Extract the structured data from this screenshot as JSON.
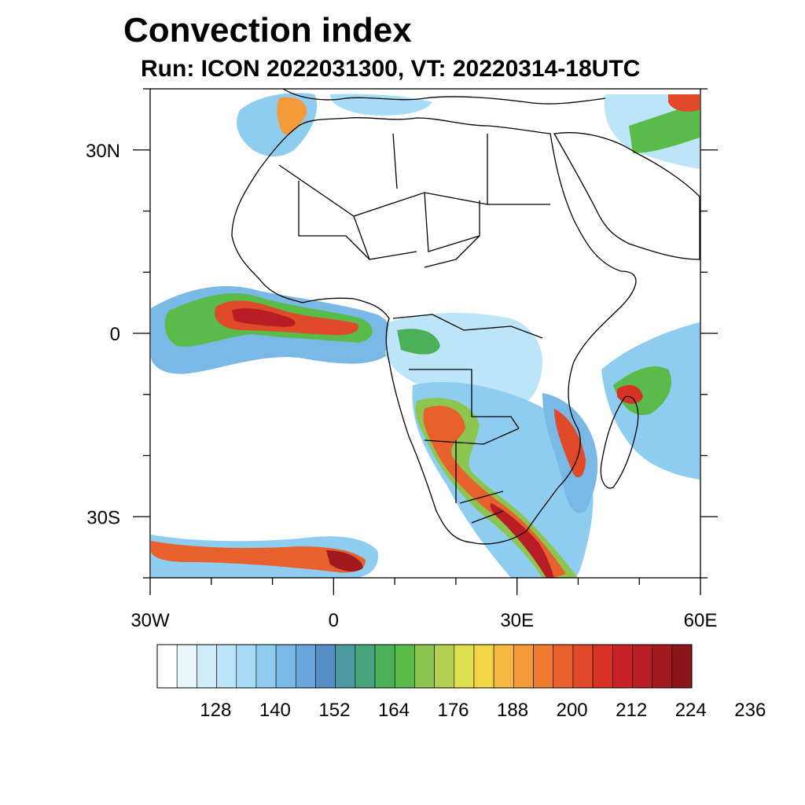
{
  "title": "Convection index",
  "subtitle": "Run: ICON 2022031300,  VT: 20220314-18UTC",
  "map": {
    "region": "Africa",
    "lon_range": [
      -30,
      60
    ],
    "lat_range": [
      -40,
      40
    ],
    "x_ticks": [
      {
        "lon": -30,
        "label": "30W"
      },
      {
        "lon": 0,
        "label": "0"
      },
      {
        "lon": 30,
        "label": "30E"
      },
      {
        "lon": 60,
        "label": "60E"
      }
    ],
    "y_ticks": [
      {
        "lat": 30,
        "label": "30N"
      },
      {
        "lat": 0,
        "label": "0"
      },
      {
        "lat": -30,
        "label": "30S"
      }
    ]
  },
  "colorbar": {
    "colors": [
      "#ffffff",
      "#e8f6fc",
      "#d1edfa",
      "#bde5f8",
      "#a6dcf6",
      "#8fcdf0",
      "#7ab8e6",
      "#6aa5dc",
      "#5590c8",
      "#4a9aa0",
      "#46a47c",
      "#4bb058",
      "#58bb4a",
      "#8cc650",
      "#b4d050",
      "#dfe050",
      "#f2d648",
      "#f6b840",
      "#f49a3a",
      "#ef7a32",
      "#e8602c",
      "#e04a28",
      "#d83226",
      "#c82228",
      "#b81c24",
      "#a01a20",
      "#8a1418"
    ],
    "tick_labels": [
      "128",
      "140",
      "152",
      "164",
      "176",
      "188",
      "200",
      "212",
      "224",
      "236"
    ]
  }
}
